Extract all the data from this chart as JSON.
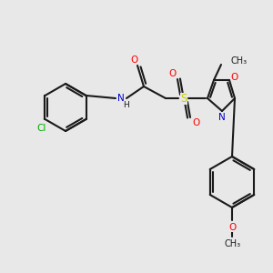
{
  "background_color": "#e8e8e8",
  "bond_color": "#1a1a1a",
  "atom_colors": {
    "O": "#ff0000",
    "N": "#0000cc",
    "S": "#cccc00",
    "Cl": "#00aa00",
    "C": "#1a1a1a",
    "H": "#1a1a1a"
  },
  "figsize": [
    3.0,
    3.0
  ],
  "dpi": 100,
  "lw": 1.5,
  "fs": 7.5
}
